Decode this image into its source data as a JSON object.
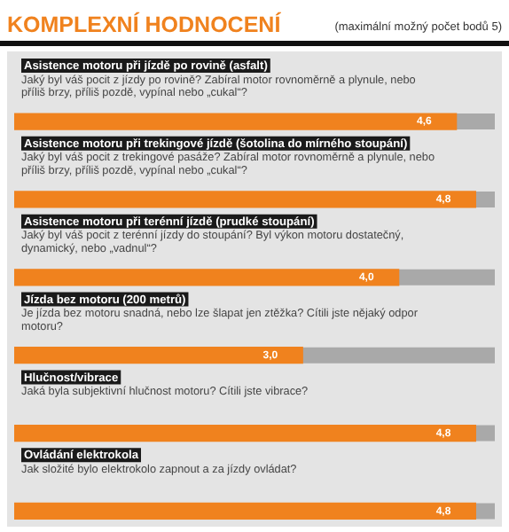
{
  "chart_data": {
    "type": "bar",
    "orientation": "horizontal",
    "title": "KOMPLEXNÍ HODNOCENÍ",
    "subtitle": "(maximální možný počet bodů 5)",
    "categories": [
      "Asistence motoru při jízdě po rovině (asfalt)",
      "Asistence motoru při trekingové jízdě (šotolina do mírného stoupání)",
      "Asistence motoru při terénní jízdě (prudké stoupání)",
      "Jízda bez motoru (200 metrů)",
      "Hlučnost/vibrace",
      "Ovládání elektrokola"
    ],
    "values": [
      4.6,
      4.8,
      4.0,
      3.0,
      4.8,
      4.8
    ],
    "value_labels": [
      "4,6",
      "4,8",
      "4,0",
      "3,0",
      "4,8",
      "4,8"
    ],
    "color": "#f0821e",
    "xlim": [
      0,
      5
    ],
    "tick_labels": false,
    "annotations": [
      "Jaký byl váš pocit z jízdy po rovině? Zabíral motor rovnoměrně a plynule, nebo příliš brzy, příliš pozdě, vypínal nebo „cukal“?",
      "Jaký byl váš pocit z trekingové pasáže? Zabíral motor rovnoměrně a plynule, nebo příliš brzy, příliš pozdě, vypínal nebo „cukal“?",
      "Jaký byl váš pocit z terénní jízdy do stoupání? Byl výkon motoru dostatečný, dynamický, nebo „vadnul“?",
      "Je jízda bez motoru snadná, nebo lze šlapat jen ztěžka? Cítili jste nějaký odpor motoru?",
      "Jaká byla subjektivní hlučnost motoru? Cítili jste vibrace?",
      "Jak složité bylo elektrokolo zapnout a za jízdy ovládat?"
    ]
  }
}
